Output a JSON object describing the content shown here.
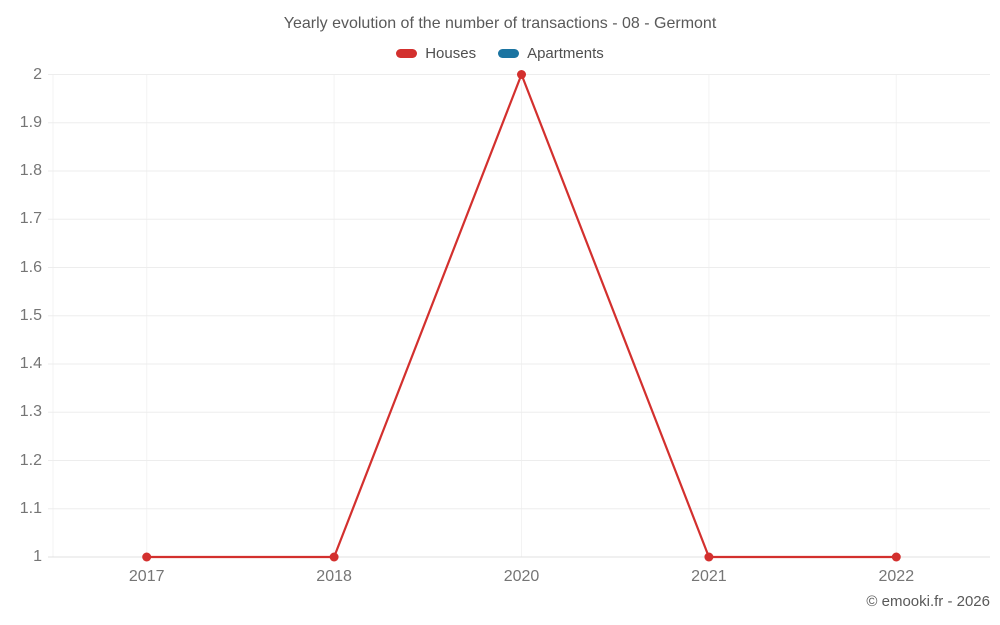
{
  "title": "Yearly evolution of the number of transactions - 08 - Germont",
  "copyright": "© emooki.fr - 2026",
  "legend": {
    "items": [
      {
        "label": "Houses",
        "color": "#d3302e"
      },
      {
        "label": "Apartments",
        "color": "#1b74a1"
      }
    ]
  },
  "chart_data": {
    "type": "line",
    "title": "Yearly evolution of the number of transactions - 08 - Germont",
    "categories": [
      "2017",
      "2018",
      "2020",
      "2021",
      "2022"
    ],
    "series": [
      {
        "name": "Houses",
        "color": "#d3302e",
        "values": [
          1,
          1,
          2,
          1,
          1
        ]
      },
      {
        "name": "Apartments",
        "color": "#1b74a1",
        "values": []
      }
    ],
    "xlabel": "",
    "ylabel": "",
    "ylim": [
      1,
      2
    ],
    "y_ticks": [
      {
        "value": 2,
        "label": "2"
      },
      {
        "value": 1.9,
        "label": "1.9"
      },
      {
        "value": 1.8,
        "label": "1.8"
      },
      {
        "value": 1.7,
        "label": "1.7"
      },
      {
        "value": 1.6,
        "label": "1.6"
      },
      {
        "value": 1.5,
        "label": "1.5"
      },
      {
        "value": 1.4,
        "label": "1.4"
      },
      {
        "value": 1.3,
        "label": "1.3"
      },
      {
        "value": 1.2,
        "label": "1.2"
      },
      {
        "value": 1.1,
        "label": "1.1"
      },
      {
        "value": 1,
        "label": "1"
      }
    ],
    "grid": true,
    "legend_position": "top",
    "marker": "circle",
    "grid_color_h": "#ededed",
    "grid_color_v": "#f3f3f3",
    "baseline_color": "#e0e0e0"
  }
}
